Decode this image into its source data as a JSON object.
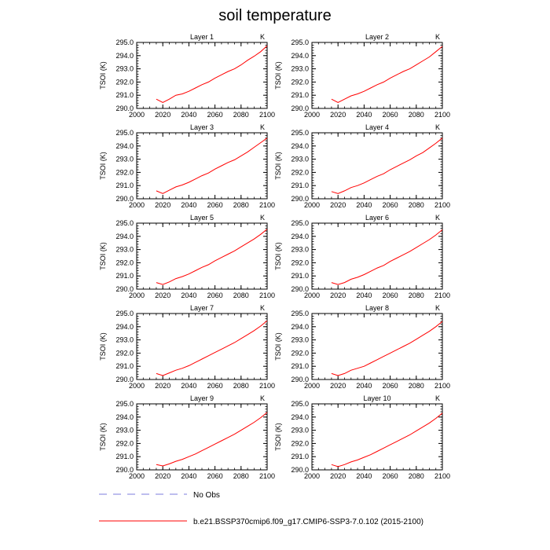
{
  "title": "soil temperature",
  "ylabel": "TSOI  (K)",
  "units": "K",
  "x_ticks": [
    "2000",
    "2020",
    "2040",
    "2060",
    "2080",
    "2100"
  ],
  "y_ticks": [
    "290.0",
    "291.0",
    "292.0",
    "293.0",
    "294.0",
    "295.0"
  ],
  "legend": {
    "obs_label": "No Obs",
    "obs_color": "#7b7bdc",
    "model_label": "b.e21.BSSP370cmip6.f09_g17.CMIP6-SSP3-7.0.102 (2015-2100)",
    "model_color": "#ff0000"
  },
  "chart_data": {
    "type": "line",
    "xlim": [
      2000,
      2100
    ],
    "ylim": [
      290.0,
      295.0
    ],
    "xlabel": "",
    "ylabel": "TSOI  (K)",
    "grid": false,
    "legend_position": "bottom",
    "line_color": "#ff0000",
    "x": [
      2015,
      2020,
      2025,
      2030,
      2035,
      2040,
      2045,
      2050,
      2055,
      2060,
      2065,
      2070,
      2075,
      2080,
      2085,
      2090,
      2095,
      2100
    ],
    "panels": [
      {
        "title": "Layer 1",
        "values": [
          290.7,
          290.45,
          290.7,
          291.0,
          291.1,
          291.3,
          291.55,
          291.8,
          292.0,
          292.3,
          292.55,
          292.8,
          293.0,
          293.3,
          293.65,
          293.95,
          294.3,
          294.75
        ]
      },
      {
        "title": "Layer 2",
        "values": [
          290.7,
          290.45,
          290.7,
          290.95,
          291.1,
          291.3,
          291.55,
          291.8,
          292.0,
          292.3,
          292.55,
          292.8,
          293.0,
          293.3,
          293.6,
          293.9,
          294.3,
          294.7
        ]
      },
      {
        "title": "Layer 3",
        "values": [
          290.6,
          290.4,
          290.65,
          290.9,
          291.05,
          291.25,
          291.5,
          291.75,
          291.95,
          292.25,
          292.5,
          292.75,
          292.95,
          293.25,
          293.55,
          293.9,
          294.25,
          294.6
        ]
      },
      {
        "title": "Layer 4",
        "values": [
          290.55,
          290.4,
          290.6,
          290.85,
          291.0,
          291.2,
          291.45,
          291.7,
          291.9,
          292.2,
          292.45,
          292.7,
          292.95,
          293.25,
          293.5,
          293.85,
          294.2,
          294.6
        ]
      },
      {
        "title": "Layer 5",
        "values": [
          290.5,
          290.35,
          290.55,
          290.8,
          290.95,
          291.15,
          291.4,
          291.65,
          291.85,
          292.15,
          292.4,
          292.65,
          292.9,
          293.2,
          293.5,
          293.8,
          294.15,
          294.55
        ]
      },
      {
        "title": "Layer 6",
        "values": [
          290.5,
          290.35,
          290.5,
          290.75,
          290.9,
          291.1,
          291.35,
          291.6,
          291.8,
          292.1,
          292.35,
          292.6,
          292.85,
          293.15,
          293.45,
          293.75,
          294.1,
          294.5
        ]
      },
      {
        "title": "Layer 7",
        "values": [
          290.45,
          290.3,
          290.5,
          290.7,
          290.85,
          291.05,
          291.3,
          291.55,
          291.8,
          292.05,
          292.3,
          292.55,
          292.8,
          293.1,
          293.4,
          293.7,
          294.05,
          294.45
        ]
      },
      {
        "title": "Layer 8",
        "values": [
          290.45,
          290.3,
          290.45,
          290.7,
          290.85,
          291.0,
          291.25,
          291.5,
          291.75,
          292.0,
          292.25,
          292.5,
          292.75,
          293.05,
          293.35,
          293.65,
          294.0,
          294.4
        ]
      },
      {
        "title": "Layer 9",
        "values": [
          290.4,
          290.3,
          290.45,
          290.65,
          290.8,
          291.0,
          291.2,
          291.45,
          291.7,
          291.95,
          292.2,
          292.45,
          292.7,
          293.0,
          293.3,
          293.6,
          293.95,
          294.35
        ]
      },
      {
        "title": "Layer 10",
        "values": [
          290.4,
          290.25,
          290.4,
          290.6,
          290.75,
          290.95,
          291.15,
          291.4,
          291.65,
          291.9,
          292.15,
          292.4,
          292.65,
          292.95,
          293.25,
          293.55,
          293.9,
          294.3
        ]
      }
    ]
  }
}
